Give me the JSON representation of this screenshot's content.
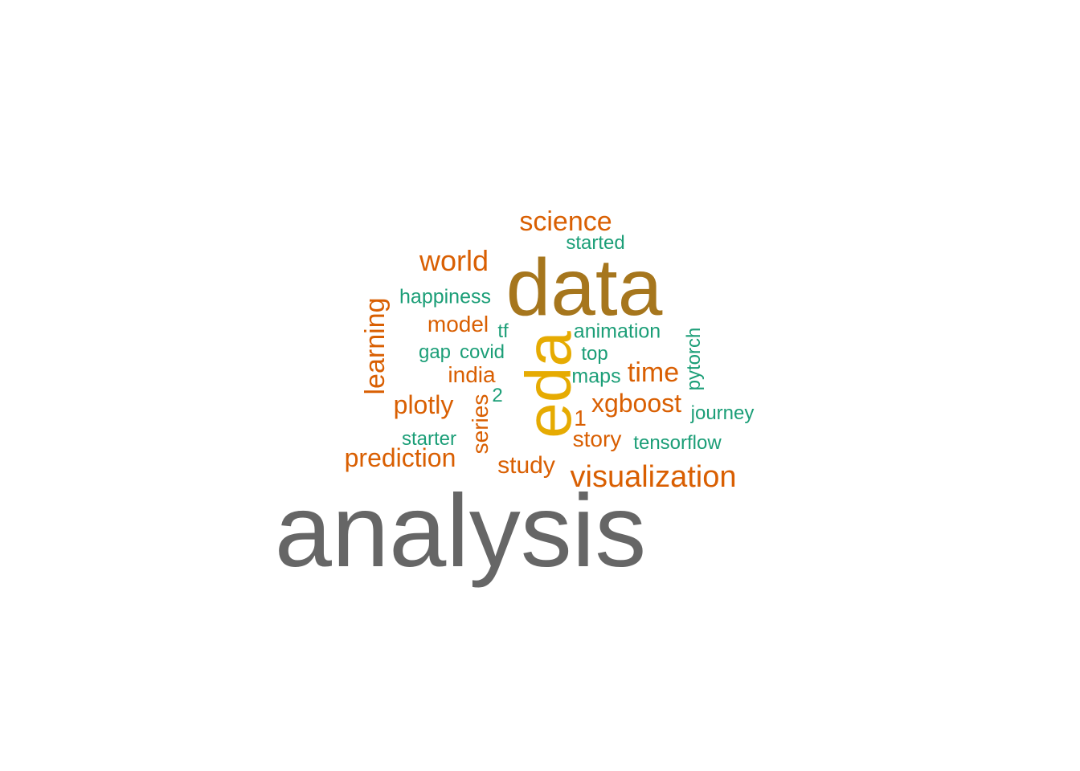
{
  "palette": {
    "orange": "#D95F02",
    "teal": "#1B9E77",
    "olive": "#A6761D",
    "gold": "#E6AB02",
    "gray": "#666666"
  },
  "words": [
    {
      "id": "analysis",
      "text": "analysis",
      "color": "gray"
    },
    {
      "id": "data",
      "text": "data",
      "color": "olive"
    },
    {
      "id": "eda",
      "text": "eda",
      "color": "gold"
    },
    {
      "id": "science",
      "text": "science",
      "color": "orange"
    },
    {
      "id": "started",
      "text": "started",
      "color": "teal"
    },
    {
      "id": "world",
      "text": "world",
      "color": "orange"
    },
    {
      "id": "happiness",
      "text": "happiness",
      "color": "teal"
    },
    {
      "id": "learning",
      "text": "learning",
      "color": "orange"
    },
    {
      "id": "model",
      "text": "model",
      "color": "orange"
    },
    {
      "id": "tf",
      "text": "tf",
      "color": "teal"
    },
    {
      "id": "animation",
      "text": "animation",
      "color": "teal"
    },
    {
      "id": "pytorch",
      "text": "pytorch",
      "color": "teal"
    },
    {
      "id": "gap",
      "text": "gap",
      "color": "teal"
    },
    {
      "id": "covid",
      "text": "covid",
      "color": "teal"
    },
    {
      "id": "top",
      "text": "top",
      "color": "teal"
    },
    {
      "id": "india",
      "text": "india",
      "color": "orange"
    },
    {
      "id": "maps",
      "text": "maps",
      "color": "teal"
    },
    {
      "id": "time",
      "text": "time",
      "color": "orange"
    },
    {
      "id": "plotly",
      "text": "plotly",
      "color": "orange"
    },
    {
      "id": "series",
      "text": "series",
      "color": "orange"
    },
    {
      "id": "two",
      "text": "2",
      "color": "teal"
    },
    {
      "id": "xgboost",
      "text": "xgboost",
      "color": "orange"
    },
    {
      "id": "one",
      "text": "1",
      "color": "orange"
    },
    {
      "id": "journey",
      "text": "journey",
      "color": "teal"
    },
    {
      "id": "starter",
      "text": "starter",
      "color": "teal"
    },
    {
      "id": "story",
      "text": "story",
      "color": "orange"
    },
    {
      "id": "tensorflow",
      "text": "tensorflow",
      "color": "teal"
    },
    {
      "id": "prediction",
      "text": "prediction",
      "color": "orange"
    },
    {
      "id": "study",
      "text": "study",
      "color": "orange"
    },
    {
      "id": "visualization",
      "text": "visualization",
      "color": "orange"
    }
  ]
}
